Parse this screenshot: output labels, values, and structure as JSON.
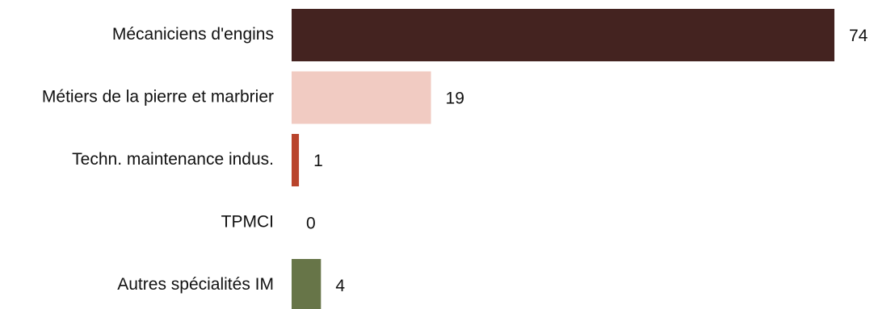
{
  "chart_data": {
    "type": "bar",
    "orientation": "horizontal",
    "title": "",
    "xlabel": "",
    "ylabel": "",
    "grid": false,
    "legend": "none",
    "xlim": [
      0,
      74
    ],
    "categories": [
      "Mécaniciens d'engins",
      "Métiers de la pierre et marbrier",
      "Techn. maintenance indus.",
      "TPMCI",
      "Autres spécialités IM"
    ],
    "values": [
      74,
      19,
      1,
      0,
      4
    ],
    "value_labels": [
      "74",
      "19",
      "1",
      "0",
      "4"
    ],
    "colors": [
      "#442320",
      "#f1cbc2",
      "#b9442c",
      "#ffffff",
      "#677548"
    ]
  }
}
